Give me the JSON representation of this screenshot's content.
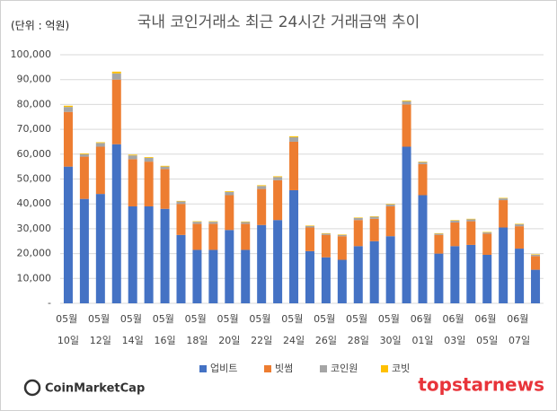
{
  "chart_data": {
    "type": "stacked-bar",
    "title": "국내 코인거래소 최근 24시간 거래금액 추이",
    "unit_label": "(단위 : 억원)",
    "categories": [
      "05월 10일",
      null,
      "05월 12일",
      null,
      "05월 14일",
      null,
      "05월 16일",
      null,
      "05월 18일",
      null,
      "05월 20일",
      null,
      "05월 22일",
      null,
      "05월 24일",
      null,
      "05월 26일",
      null,
      "05월 28일",
      null,
      "05월 30일",
      null,
      "06월 01일",
      null,
      "06월 03일",
      null,
      "06월 05일",
      null,
      "06월 07일",
      null
    ],
    "series": [
      {
        "name": "업비트",
        "color": "#4472c4",
        "values": [
          55000,
          42000,
          44000,
          64000,
          39000,
          39000,
          38000,
          27500,
          21500,
          21500,
          29500,
          21500,
          31500,
          33500,
          45500,
          21000,
          18500,
          17500,
          23000,
          25000,
          27000,
          63000,
          43500,
          20000,
          23000,
          23500,
          19500,
          30500,
          22000,
          13500
        ]
      },
      {
        "name": "빗썸",
        "color": "#ed7d31",
        "values": [
          22000,
          17000,
          19000,
          26000,
          19000,
          18000,
          16000,
          12500,
          10500,
          10500,
          14000,
          10500,
          14500,
          16000,
          19500,
          9500,
          9000,
          9500,
          10500,
          9000,
          12000,
          17000,
          12500,
          7500,
          9500,
          9500,
          8500,
          11000,
          9000,
          5500
        ]
      },
      {
        "name": "코인원",
        "color": "#a5a5a5",
        "values": [
          2000,
          1000,
          1500,
          2500,
          1500,
          1500,
          1000,
          1000,
          800,
          800,
          1300,
          700,
          1200,
          1300,
          1800,
          600,
          500,
          500,
          800,
          800,
          800,
          1300,
          800,
          500,
          800,
          800,
          500,
          700,
          800,
          500
        ]
      },
      {
        "name": "코빗",
        "color": "#ffc000",
        "values": [
          500,
          300,
          300,
          700,
          300,
          300,
          300,
          200,
          200,
          200,
          300,
          200,
          300,
          300,
          400,
          200,
          200,
          200,
          200,
          200,
          200,
          300,
          200,
          200,
          200,
          200,
          200,
          200,
          200,
          200
        ]
      }
    ],
    "ylim": [
      0,
      100000
    ],
    "yticks": [
      {
        "value": 0,
        "label": "-"
      },
      {
        "value": 10000,
        "label": "10,000"
      },
      {
        "value": 20000,
        "label": "20,000"
      },
      {
        "value": 30000,
        "label": "30,000"
      },
      {
        "value": 40000,
        "label": "40,000"
      },
      {
        "value": 50000,
        "label": "50,000"
      },
      {
        "value": 60000,
        "label": "60,000"
      },
      {
        "value": 70000,
        "label": "70,000"
      },
      {
        "value": 80000,
        "label": "80,000"
      },
      {
        "value": 90000,
        "label": "90,000"
      },
      {
        "value": {
          "value": 100000
        },
        "label": "100,000"
      }
    ],
    "grid": true,
    "legend": "bottom"
  },
  "sources": [
    "CoinMarketCap",
    "topstarnews"
  ]
}
